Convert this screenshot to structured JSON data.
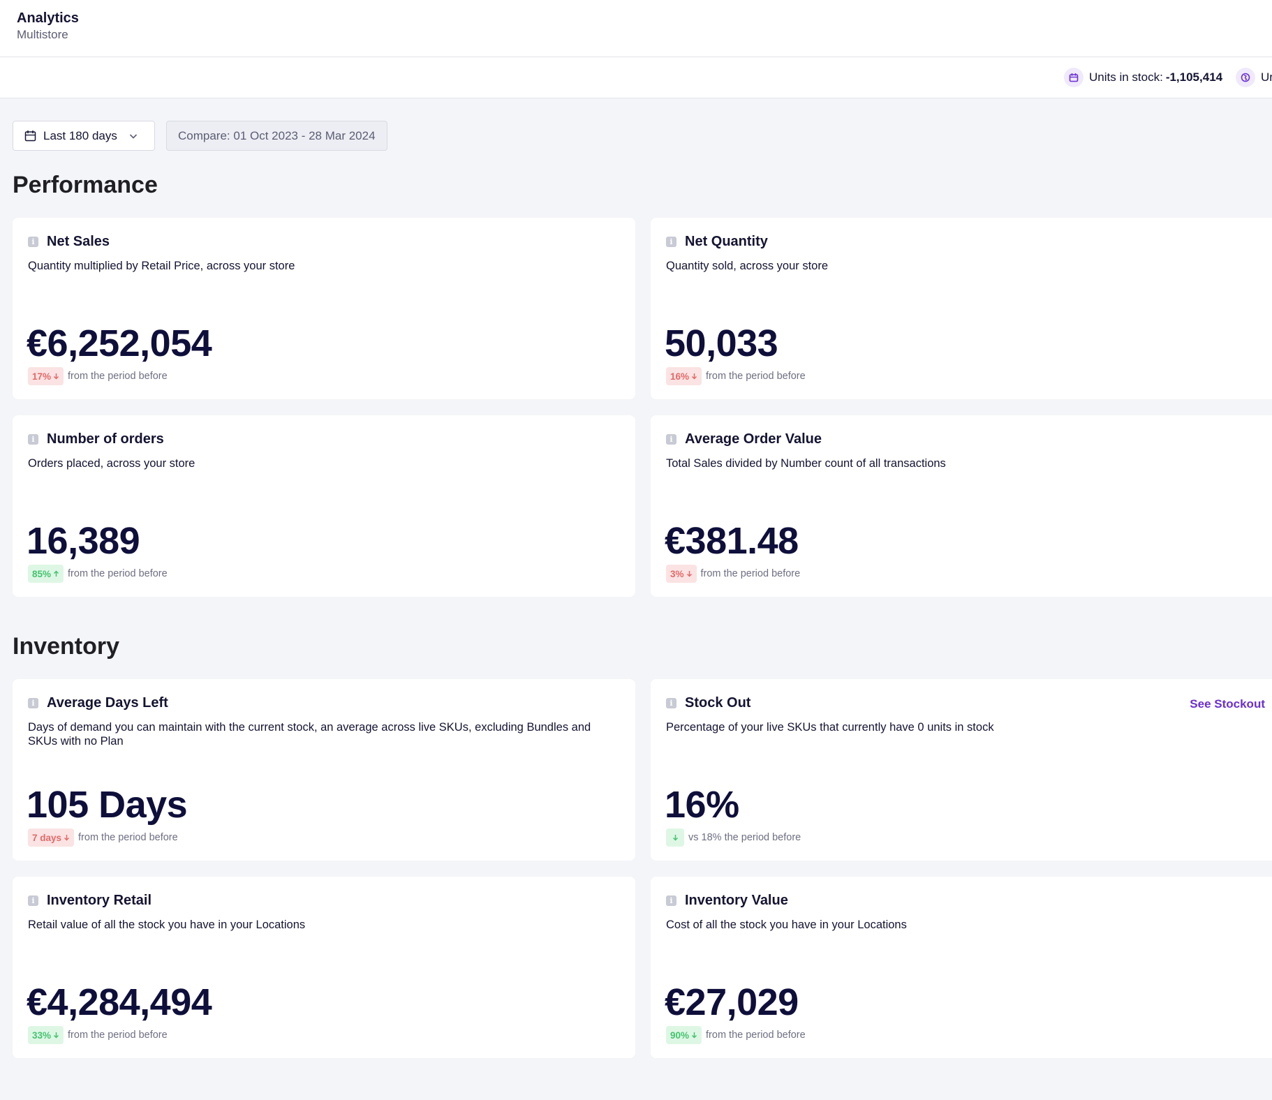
{
  "header": {
    "title": "Analytics",
    "subtitle": "Multistore"
  },
  "stats_bar": {
    "items": [
      {
        "icon": "calendar-icon",
        "label": "Units in stock:",
        "value": "-1,105,414"
      },
      {
        "icon": "globe-icon",
        "label": "Ur",
        "value": ""
      }
    ]
  },
  "filters": {
    "date_range": "Last 180 days",
    "compare": "Compare: 01 Oct 2023 - 28 Mar 2024"
  },
  "sections": {
    "performance": "Performance",
    "inventory": "Inventory"
  },
  "cards": {
    "net_sales": {
      "title": "Net Sales",
      "description": "Quantity multiplied by Retail Price, across your store",
      "value": "€6,252,054",
      "change": "17%",
      "direction": "down",
      "tone": "red",
      "footer": "from the period before"
    },
    "net_quantity": {
      "title": "Net Quantity",
      "description": "Quantity sold, across your store",
      "value": "50,033",
      "change": "16%",
      "direction": "down",
      "tone": "red",
      "footer": "from the period before"
    },
    "orders": {
      "title": "Number of orders",
      "description": "Orders placed, across your store",
      "value": "16,389",
      "change": "85%",
      "direction": "up",
      "tone": "green",
      "footer": "from the period before"
    },
    "aov": {
      "title": "Average Order Value",
      "description": "Total Sales divided by Number count of all transactions",
      "value": "€381.48",
      "change": "3%",
      "direction": "down",
      "tone": "red",
      "footer": "from the period before"
    },
    "days_left": {
      "title": "Average Days Left",
      "description": "Days of demand you can maintain with the current stock, an average across live SKUs, excluding Bundles and SKUs with no Plan",
      "value": "105 Days",
      "change": "7 days",
      "direction": "down",
      "tone": "red",
      "footer": "from the period before"
    },
    "stock_out": {
      "title": "Stock Out",
      "link": "See Stockout",
      "description": "Percentage of your live SKUs that currently have 0 units in stock",
      "value": "16%",
      "change": "",
      "direction": "down",
      "tone": "green",
      "footer": "vs 18% the period before"
    },
    "inventory_retail": {
      "title": "Inventory Retail",
      "description": "Retail value of all the stock you have in your Locations",
      "value": "€4,284,494",
      "change": "33%",
      "direction": "down",
      "tone": "green",
      "footer": "from the period before"
    },
    "inventory_value": {
      "title": "Inventory Value",
      "description": "Cost of all the stock you have in your Locations",
      "value": "€27,029",
      "change": "90%",
      "direction": "down",
      "tone": "green",
      "footer": "from the period before"
    }
  },
  "colors": {
    "accent": "#6a2fd3",
    "negative": "#e46969",
    "positive": "#45c36f",
    "value": "#0f0f3b"
  }
}
